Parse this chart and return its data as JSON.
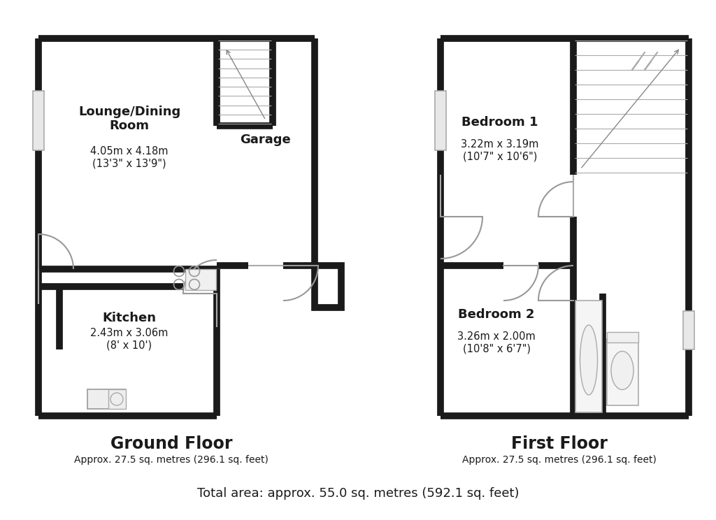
{
  "bg_color": "#ffffff",
  "wall_color": "#1a1a1a",
  "lw": 7,
  "thin_lw": 1.5,
  "title": "Ground Floor",
  "title2": "First Floor",
  "subtitle": "Approx. 27.5 sq. metres (296.1 sq. feet)",
  "subtitle2": "Approx. 27.5 sq. metres (296.1 sq. feet)",
  "total": "Total area: approx. 55.0 sq. metres (592.1 sq. feet)",
  "lounge_label": "Lounge/Dining\nRoom",
  "lounge_dim": "4.05m x 4.18m\n(13'3\" x 13'9\")",
  "kitchen_label": "Kitchen",
  "kitchen_dim": "2.43m x 3.06m\n(8' x 10')",
  "garage_label": "Garage",
  "bed1_label": "Bedroom 1",
  "bed1_dim": "3.22m x 3.19m\n(10'7\" x 10'6\")",
  "bed2_label": "Bedroom 2",
  "bed2_dim": "3.26m x 2.00m\n(10'8\" x 6'7\")"
}
